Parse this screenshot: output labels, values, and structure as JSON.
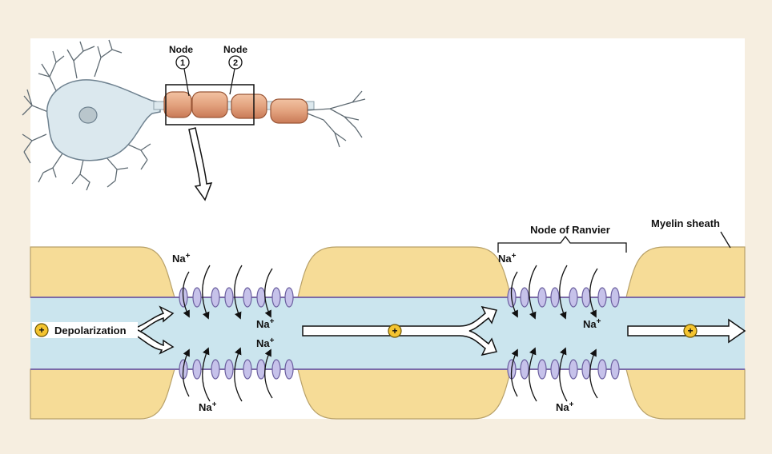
{
  "labels": {
    "node_word": "Node",
    "node_1": "1",
    "node_2": "2",
    "node_of_ranvier": "Node of Ranvier",
    "myelin_sheath": "Myelin sheath",
    "depolarization": "Depolarization",
    "na_ion": "Na",
    "na_charge": "+",
    "plus": "+"
  },
  "colors": {
    "page_background": "#f6eee0",
    "panel_background": "#ffffff",
    "myelin": "#f6dc97",
    "axoplasm": "#cbe5ee",
    "membrane": "#7b6aa8",
    "channel": "#c6c2ea",
    "soma": "#dbe8ee",
    "segment": "#e3a27e",
    "charge_marker": "#f4c430"
  }
}
